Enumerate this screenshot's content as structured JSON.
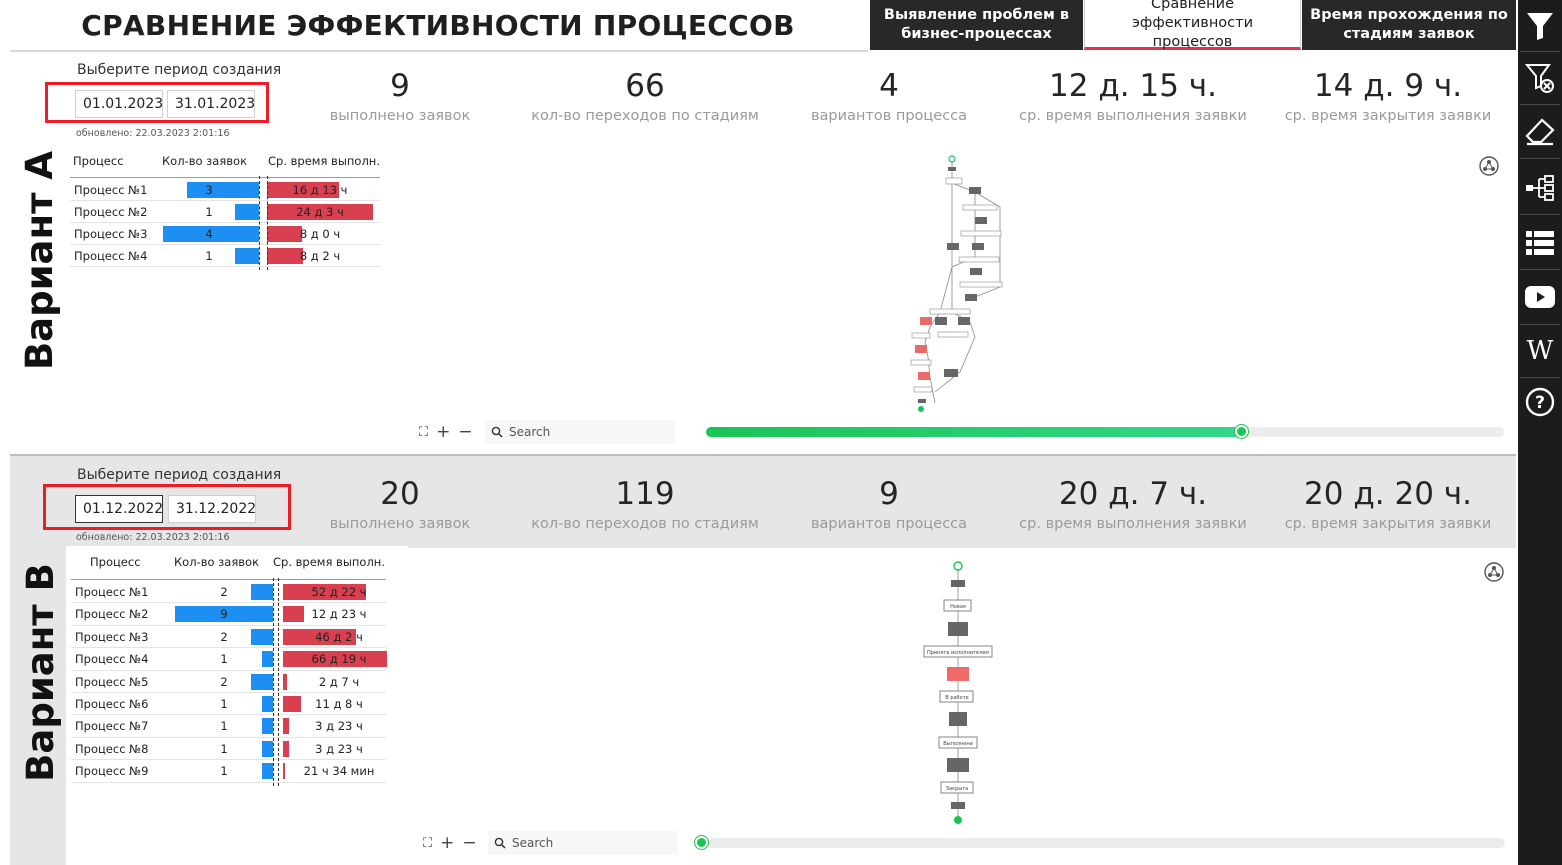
{
  "header": {
    "title": "СРАВНЕНИЕ ЭФФЕКТИВНОСТИ ПРОЦЕССОВ",
    "tabs": [
      {
        "label": "Выявление проблем в бизнес-процессах",
        "active": false
      },
      {
        "label": "Сравнение эффективности процессов",
        "active": true
      },
      {
        "label": "Время прохождения по стадиям заявок",
        "active": false
      }
    ]
  },
  "sidebar": {
    "icons": [
      "filter-icon",
      "clear-filter-icon",
      "eraser-icon",
      "hierarchy-icon",
      "list-icon",
      "youtube-icon",
      "wikipedia-icon",
      "help-icon"
    ]
  },
  "variants": [
    {
      "label": "Вариант А",
      "period_label": "Выберите период создания",
      "date_from": "01.01.2023",
      "date_to": "31.01.2023",
      "updated": "обновлено: 22.03.2023 2:01:16",
      "kpis": [
        {
          "value": "9",
          "label": "выполнено заявок"
        },
        {
          "value": "66",
          "label": "кол-во переходов по стадиям"
        },
        {
          "value": "4",
          "label": "вариантов процесса"
        },
        {
          "value": "12 д. 15 ч.",
          "label": "ср. время выполнения заявки"
        },
        {
          "value": "14 д. 9 ч.",
          "label": "ср. время закрытия заявки"
        }
      ],
      "table": {
        "headers": [
          "Процесс",
          "Кол-во заявок",
          "Ср. время выполн."
        ],
        "rows": [
          {
            "name": "Процесс №1",
            "count": "3",
            "count_frac": 0.75,
            "time": "16 д 13 ч",
            "time_frac": 0.68
          },
          {
            "name": "Процесс №2",
            "count": "1",
            "count_frac": 0.25,
            "time": "24 д 3 ч",
            "time_frac": 1.0
          },
          {
            "name": "Процесс №3",
            "count": "4",
            "count_frac": 1.0,
            "time": "8 д 0 ч",
            "time_frac": 0.33
          },
          {
            "name": "Процесс №4",
            "count": "1",
            "count_frac": 0.25,
            "time": "8 д 2 ч",
            "time_frac": 0.34
          }
        ]
      },
      "map": {
        "search_placeholder": "Search",
        "slider_value": 0.67
      }
    },
    {
      "label": "Вариант В",
      "period_label": "Выберите период создания",
      "date_from": "01.12.2022",
      "date_to": "31.12.2022",
      "updated": "обновлено: 22.03.2023 2:01:16",
      "kpis": [
        {
          "value": "20",
          "label": "выполнено заявок"
        },
        {
          "value": "119",
          "label": "кол-во переходов по стадиям"
        },
        {
          "value": "9",
          "label": "вариантов процесса"
        },
        {
          "value": "20 д. 7 ч.",
          "label": "ср. время выполнения заявки"
        },
        {
          "value": "20 д. 20 ч.",
          "label": "ср. время закрытия заявки"
        }
      ],
      "table": {
        "headers": [
          "Процесс",
          "Кол-во заявок",
          "Ср. время выполн."
        ],
        "rows": [
          {
            "name": "Процесс №1",
            "count": "2",
            "count_frac": 0.22,
            "time": "52 д 22 ч",
            "time_frac": 0.8
          },
          {
            "name": "Процесс №2",
            "count": "9",
            "count_frac": 1.0,
            "time": "12 д 23 ч",
            "time_frac": 0.2
          },
          {
            "name": "Процесс №3",
            "count": "2",
            "count_frac": 0.22,
            "time": "46 д 2 ч",
            "time_frac": 0.7
          },
          {
            "name": "Процесс №4",
            "count": "1",
            "count_frac": 0.11,
            "time": "66 д 19 ч",
            "time_frac": 1.0
          },
          {
            "name": "Процесс №5",
            "count": "2",
            "count_frac": 0.22,
            "time": "2 д 7 ч",
            "time_frac": 0.035
          },
          {
            "name": "Процесс №6",
            "count": "1",
            "count_frac": 0.11,
            "time": "11 д 8 ч",
            "time_frac": 0.17
          },
          {
            "name": "Процесс №7",
            "count": "1",
            "count_frac": 0.11,
            "time": "3 д 23 ч",
            "time_frac": 0.06
          },
          {
            "name": "Процесс №8",
            "count": "1",
            "count_frac": 0.11,
            "time": "3 д 23 ч",
            "time_frac": 0.06
          },
          {
            "name": "Процесс №9",
            "count": "1",
            "count_frac": 0.11,
            "time": "21 ч 34 мин",
            "time_frac": 0.013
          }
        ]
      },
      "map": {
        "search_placeholder": "Search",
        "slider_value": 0.0,
        "nodes": [
          "Новая",
          "Принята исполнителем",
          "В работе",
          "Выполнена",
          "Закрыта"
        ]
      }
    }
  ]
}
